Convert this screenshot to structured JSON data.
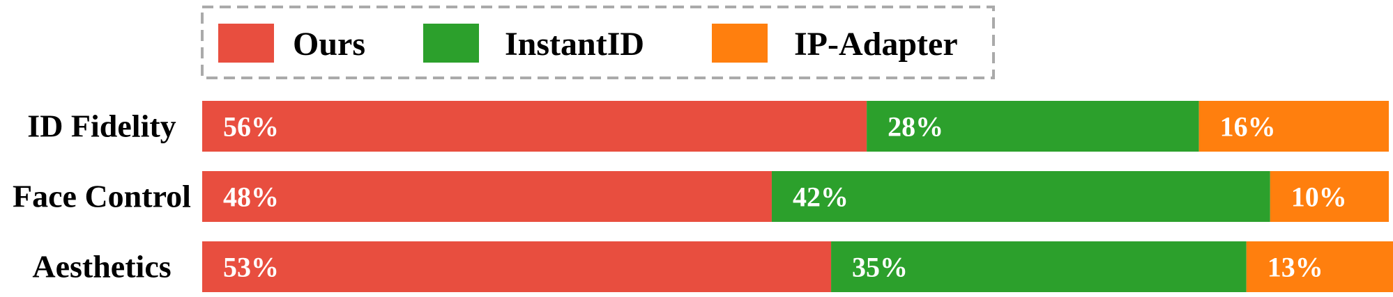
{
  "colors": {
    "Ours": "#e84e3f",
    "InstantID": "#2ca02c",
    "IP-Adapter": "#ff7f0e"
  },
  "chart_data": {
    "type": "bar",
    "orientation": "horizontal",
    "stacked": true,
    "normalized_percent": true,
    "categories": [
      "ID Fidelity",
      "Face Control",
      "Aesthetics"
    ],
    "series": [
      {
        "name": "Ours",
        "values": [
          56,
          48,
          53
        ],
        "labels": [
          "56%",
          "48%",
          "53%"
        ]
      },
      {
        "name": "InstantID",
        "values": [
          28,
          42,
          35
        ],
        "labels": [
          "28%",
          "42%",
          "35%"
        ]
      },
      {
        "name": "IP-Adapter",
        "values": [
          16,
          10,
          13
        ],
        "labels": [
          "16%",
          "10%",
          "13%"
        ]
      }
    ],
    "xlim": [
      0,
      100
    ],
    "title": "",
    "xlabel": "",
    "ylabel": "",
    "grid": false,
    "legend_position": "top"
  }
}
